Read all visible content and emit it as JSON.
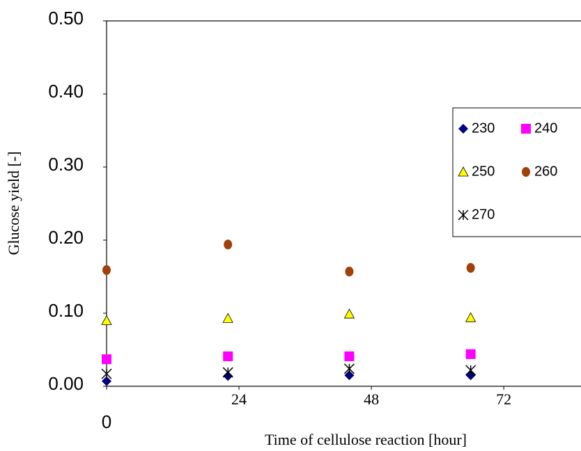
{
  "chart_data": {
    "type": "scatter",
    "xlabel": "Time of cellulose reaction [hour]",
    "ylabel": "Glucose yield [-]",
    "xlim": [
      0,
      86
    ],
    "xticks": [
      0,
      24,
      48,
      72
    ],
    "ylim": [
      0,
      0.5
    ],
    "yticks": [
      {
        "value": 0,
        "label": "0.00"
      },
      {
        "value": 0.1,
        "label": "0.10"
      },
      {
        "value": 0.2,
        "label": "0.20"
      },
      {
        "value": 0.3,
        "label": "0.30"
      },
      {
        "value": 0.4,
        "label": "0.40"
      },
      {
        "value": 0.5,
        "label": "0.50"
      }
    ],
    "grid": false,
    "series": [
      {
        "name": "230",
        "color": "#000080",
        "marker": "diamond",
        "x": [
          0,
          22,
          44,
          66
        ],
        "values": [
          0.007,
          0.014,
          0.015,
          0.015
        ]
      },
      {
        "name": "240",
        "color": "#ff00ff",
        "marker": "square",
        "x": [
          0,
          22,
          44,
          66
        ],
        "values": [
          0.037,
          0.041,
          0.041,
          0.044
        ]
      },
      {
        "name": "250",
        "color": "#ffff00",
        "marker": "triangle",
        "x": [
          0,
          22,
          44,
          66
        ],
        "values": [
          0.09,
          0.093,
          0.099,
          0.094
        ]
      },
      {
        "name": "260",
        "color": "#a0400a",
        "marker": "circle",
        "x": [
          0,
          22,
          44,
          66
        ],
        "values": [
          0.159,
          0.194,
          0.157,
          0.162
        ]
      },
      {
        "name": "270",
        "color": "#000000",
        "marker": "asterisk",
        "x": [
          0,
          22,
          44,
          66
        ],
        "values": [
          0.017,
          0.019,
          0.024,
          0.022
        ]
      }
    ]
  }
}
